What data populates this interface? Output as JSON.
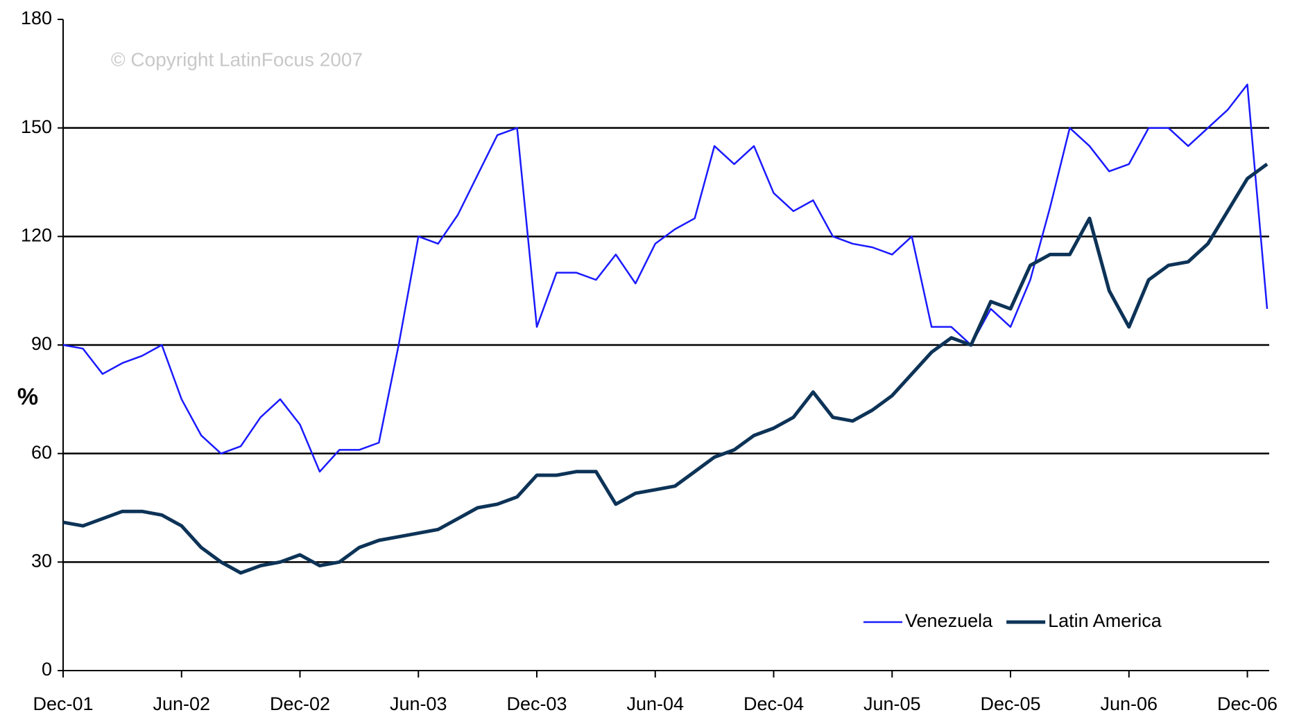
{
  "chart_data": {
    "type": "line",
    "annotation": "© Copyright LatinFocus 2007",
    "y_label": "%",
    "categories": [
      "Dec-01",
      null,
      null,
      null,
      null,
      null,
      "Jun-02",
      null,
      null,
      null,
      null,
      null,
      "Dec-02",
      null,
      null,
      null,
      null,
      null,
      "Jun-03",
      null,
      null,
      null,
      null,
      null,
      "Dec-03",
      null,
      null,
      null,
      null,
      null,
      "Jun-04",
      null,
      null,
      null,
      null,
      null,
      "Dec-04",
      null,
      null,
      null,
      null,
      null,
      "Jun-05",
      null,
      null,
      null,
      null,
      null,
      "Dec-05",
      null,
      null,
      null,
      null,
      null,
      "Jun-06",
      null,
      null,
      null,
      null,
      null,
      "Dec-06",
      null
    ],
    "series": [
      {
        "name": "Venezuela",
        "color": "#1a1aff",
        "values": [
          90,
          89,
          82,
          85,
          87,
          90,
          75,
          65,
          60,
          62,
          70,
          75,
          68,
          55,
          61,
          61,
          63,
          90,
          120,
          118,
          126,
          137,
          148,
          150,
          95,
          110,
          110,
          108,
          115,
          107,
          118,
          122,
          125,
          145,
          140,
          145,
          132,
          127,
          130,
          120,
          118,
          117,
          115,
          120,
          95,
          95,
          90,
          100,
          95,
          108,
          128,
          150,
          145,
          138,
          140,
          150,
          150,
          145,
          150,
          155,
          162,
          100
        ]
      },
      {
        "name": "Latin America",
        "color": "#0d3357",
        "values": [
          41,
          40,
          42,
          44,
          44,
          43,
          40,
          34,
          30,
          27,
          29,
          30,
          32,
          29,
          30,
          34,
          36,
          37,
          38,
          39,
          42,
          45,
          46,
          48,
          54,
          54,
          55,
          55,
          46,
          49,
          50,
          51,
          55,
          59,
          61,
          65,
          67,
          70,
          77,
          70,
          69,
          72,
          76,
          82,
          88,
          92,
          90,
          102,
          100,
          112,
          115,
          115,
          125,
          105,
          95,
          108,
          112,
          113,
          118,
          127,
          136,
          140
        ]
      }
    ],
    "ylim": [
      0,
      180
    ],
    "yticks": [
      0,
      30,
      60,
      90,
      120,
      150,
      180
    ],
    "grid": true,
    "legend": "lower right"
  }
}
